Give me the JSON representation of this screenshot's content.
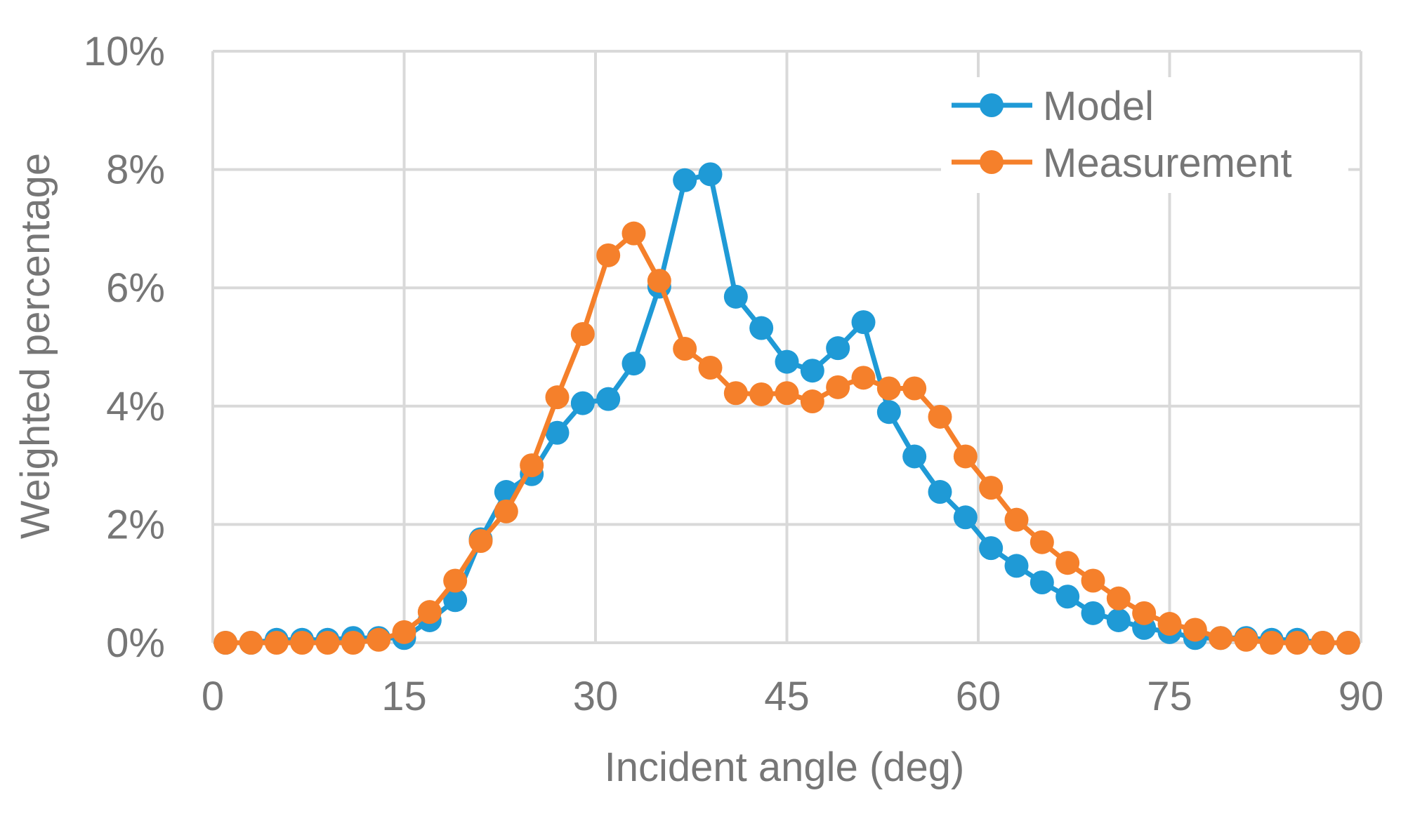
{
  "chart_data": {
    "type": "line",
    "title": "",
    "xlabel": "Incident angle (deg)",
    "ylabel": "Weighted percentage",
    "xlim": [
      0,
      90
    ],
    "ylim": [
      0,
      10
    ],
    "xticks": [
      0,
      15,
      30,
      45,
      60,
      75,
      90
    ],
    "xtick_labels": [
      "0",
      "15",
      "30",
      "45",
      "60",
      "75",
      "90"
    ],
    "yticks": [
      0,
      2,
      4,
      6,
      8,
      10
    ],
    "ytick_labels": [
      "0%",
      "2%",
      "4%",
      "6%",
      "8%",
      "10%"
    ],
    "grid": true,
    "legend_position": "top-right",
    "x": [
      1,
      3,
      5,
      7,
      9,
      11,
      13,
      15,
      17,
      19,
      21,
      23,
      25,
      27,
      29,
      31,
      33,
      35,
      37,
      39,
      41,
      43,
      45,
      47,
      49,
      51,
      53,
      55,
      57,
      59,
      61,
      63,
      65,
      67,
      69,
      71,
      73,
      75,
      77,
      79,
      81,
      83,
      85,
      87,
      89
    ],
    "series": [
      {
        "name": "Model",
        "color": "#1f9ad6",
        "values": [
          0,
          0,
          0.05,
          0.05,
          0.05,
          0.08,
          0.08,
          0.08,
          0.38,
          0.72,
          1.75,
          2.55,
          2.85,
          3.55,
          4.05,
          4.12,
          4.72,
          6.02,
          7.82,
          7.92,
          5.85,
          5.32,
          4.75,
          4.6,
          4.98,
          5.42,
          3.9,
          3.15,
          2.55,
          2.12,
          1.6,
          1.3,
          1.02,
          0.78,
          0.5,
          0.38,
          0.25,
          0.18,
          0.08,
          0.08,
          0.08,
          0.05,
          0.05,
          0,
          0
        ]
      },
      {
        "name": "Measurement",
        "color": "#f5802b",
        "values": [
          0,
          0,
          0,
          0,
          0,
          0,
          0.05,
          0.18,
          0.52,
          1.05,
          1.72,
          2.22,
          3.0,
          4.15,
          5.22,
          6.55,
          6.92,
          6.12,
          4.97,
          4.65,
          4.22,
          4.2,
          4.22,
          4.08,
          4.32,
          4.48,
          4.3,
          4.3,
          3.82,
          3.15,
          2.62,
          2.08,
          1.7,
          1.35,
          1.05,
          0.75,
          0.5,
          0.32,
          0.22,
          0.08,
          0.05,
          0,
          0,
          0,
          0
        ]
      }
    ]
  }
}
